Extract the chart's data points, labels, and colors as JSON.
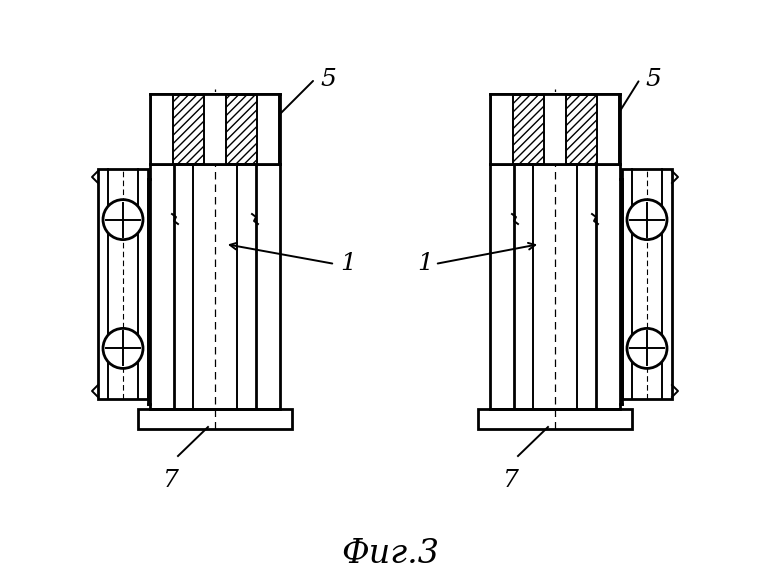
{
  "title": "Фиг.3",
  "label_5": "5",
  "label_1": "1",
  "label_7": "7",
  "bg_color": "#ffffff",
  "line_color": "#000000",
  "lw": 1.4,
  "lw2": 2.0
}
